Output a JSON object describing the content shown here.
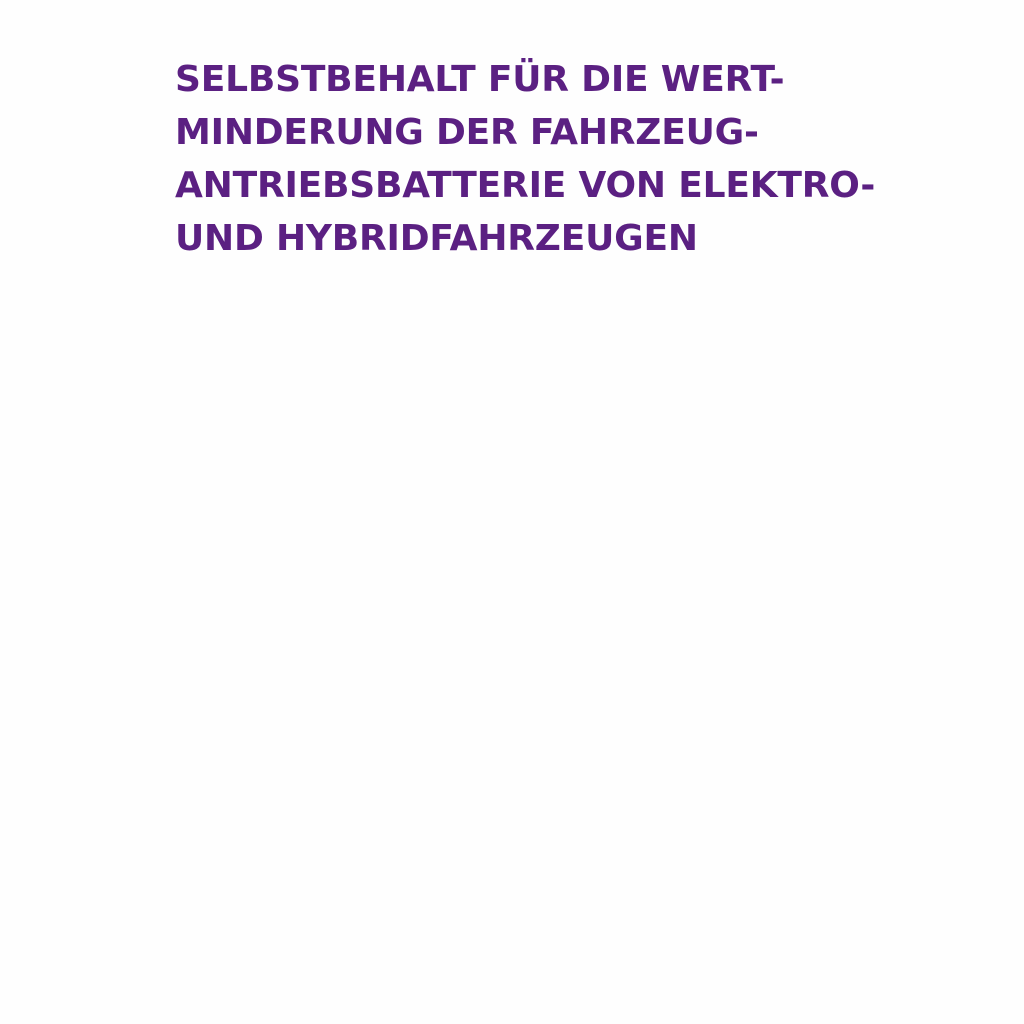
{
  "document": {
    "heading_lines": [
      "SELBSTBEHALT FÜR DIE WERT-",
      "MINDERUNG DER FAHRZEUG-",
      "ANTRIEBSBATTERIE VON ELEKTRO-",
      "UND HYBRIDFAHRZEUGEN"
    ]
  },
  "colors": {
    "heading": "#5b2082",
    "background": "#fefefe"
  }
}
